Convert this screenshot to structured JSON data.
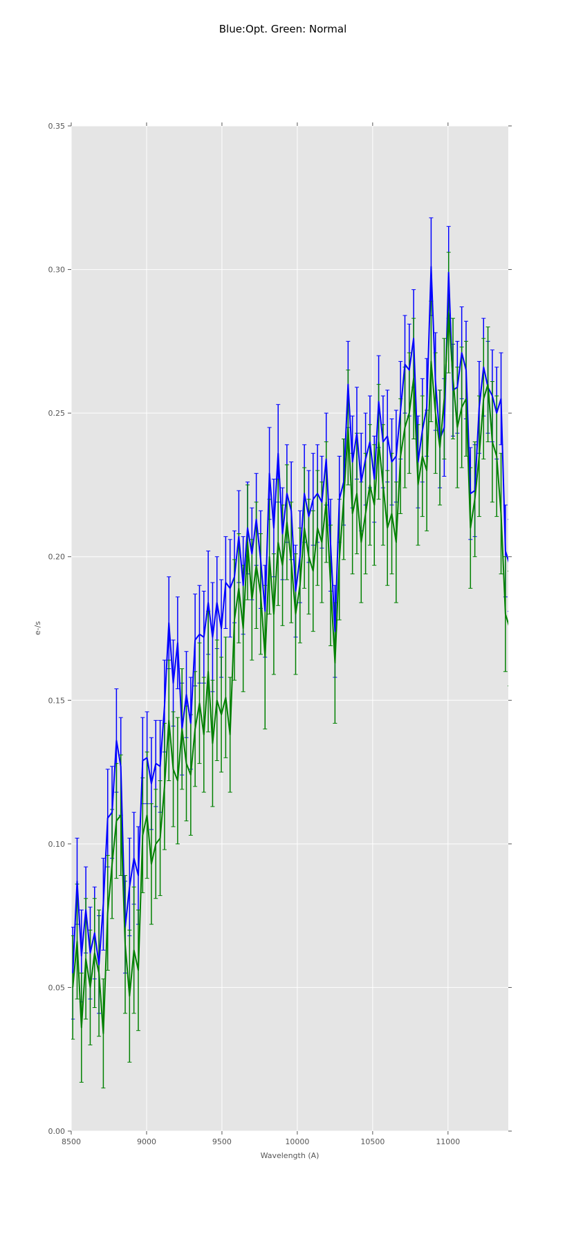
{
  "chart_data": {
    "type": "line",
    "title": "Blue:Opt. Green: Normal",
    "xlabel": "Wavelength (A)",
    "ylabel": "e-/s",
    "xlim": [
      8500,
      11400
    ],
    "ylim": [
      0,
      0.35
    ],
    "grid": true,
    "xticks": [
      8500,
      9000,
      9500,
      10000,
      10500,
      11000
    ],
    "xtick_labels": [
      "8500",
      "9000",
      "9500",
      "10000",
      "10500",
      "11000"
    ],
    "yticks": [
      0,
      0.05,
      0.1,
      0.15,
      0.2,
      0.25,
      0.3,
      0.35
    ],
    "ytick_labels": [
      "0.00",
      "0.05",
      "0.10",
      "0.15",
      "0.20",
      "0.25",
      "0.30",
      "0.35"
    ],
    "x_start": 8510,
    "x_step": 29,
    "series": [
      {
        "name": "Opt.",
        "color": "#0000ff",
        "values": [
          0.055,
          0.087,
          0.061,
          0.077,
          0.062,
          0.069,
          0.058,
          0.079,
          0.109,
          0.111,
          0.136,
          0.127,
          0.071,
          0.085,
          0.095,
          0.089,
          0.129,
          0.13,
          0.121,
          0.128,
          0.127,
          0.148,
          0.177,
          0.156,
          0.17,
          0.14,
          0.152,
          0.142,
          0.171,
          0.173,
          0.172,
          0.184,
          0.172,
          0.184,
          0.175,
          0.191,
          0.189,
          0.193,
          0.207,
          0.19,
          0.21,
          0.201,
          0.213,
          0.199,
          0.181,
          0.229,
          0.21,
          0.236,
          0.208,
          0.222,
          0.216,
          0.188,
          0.2,
          0.222,
          0.214,
          0.22,
          0.222,
          0.219,
          0.234,
          0.204,
          0.174,
          0.22,
          0.226,
          0.26,
          0.233,
          0.243,
          0.226,
          0.234,
          0.24,
          0.227,
          0.254,
          0.24,
          0.242,
          0.233,
          0.235,
          0.251,
          0.267,
          0.265,
          0.276,
          0.233,
          0.244,
          0.252,
          0.301,
          0.261,
          0.241,
          0.245,
          0.299,
          0.258,
          0.259,
          0.271,
          0.265,
          0.222,
          0.223,
          0.252,
          0.266,
          0.259,
          0.256,
          0.25,
          0.255,
          0.202,
          0.197
        ],
        "yerr": [
          0.016,
          0.015,
          0.016,
          0.015,
          0.016,
          0.016,
          0.017,
          0.016,
          0.017,
          0.016,
          0.018,
          0.017,
          0.016,
          0.017,
          0.016,
          0.017,
          0.015,
          0.016,
          0.016,
          0.015,
          0.016,
          0.016,
          0.016,
          0.015,
          0.016,
          0.016,
          0.015,
          0.016,
          0.016,
          0.017,
          0.016,
          0.018,
          0.019,
          0.016,
          0.017,
          0.016,
          0.017,
          0.016,
          0.016,
          0.017,
          0.016,
          0.016,
          0.016,
          0.017,
          0.016,
          0.016,
          0.017,
          0.017,
          0.016,
          0.017,
          0.017,
          0.016,
          0.016,
          0.017,
          0.016,
          0.016,
          0.017,
          0.016,
          0.016,
          0.016,
          0.016,
          0.015,
          0.015,
          0.015,
          0.016,
          0.016,
          0.017,
          0.016,
          0.016,
          0.015,
          0.016,
          0.016,
          0.016,
          0.015,
          0.016,
          0.017,
          0.017,
          0.016,
          0.017,
          0.016,
          0.018,
          0.017,
          0.017,
          0.017,
          0.017,
          0.017,
          0.016,
          0.016,
          0.016,
          0.016,
          0.017,
          0.016,
          0.016,
          0.016,
          0.017,
          0.016,
          0.016,
          0.016,
          0.016,
          0.016,
          0.016
        ]
      },
      {
        "name": "Normal",
        "color": "#008000",
        "values": [
          0.05,
          0.066,
          0.036,
          0.06,
          0.05,
          0.062,
          0.055,
          0.034,
          0.076,
          0.093,
          0.108,
          0.11,
          0.065,
          0.047,
          0.063,
          0.056,
          0.103,
          0.11,
          0.093,
          0.1,
          0.102,
          0.12,
          0.143,
          0.126,
          0.122,
          0.14,
          0.128,
          0.124,
          0.14,
          0.149,
          0.138,
          0.16,
          0.135,
          0.15,
          0.145,
          0.151,
          0.138,
          0.178,
          0.189,
          0.175,
          0.205,
          0.185,
          0.197,
          0.187,
          0.165,
          0.2,
          0.18,
          0.205,
          0.197,
          0.212,
          0.198,
          0.18,
          0.19,
          0.21,
          0.2,
          0.195,
          0.21,
          0.205,
          0.219,
          0.19,
          0.163,
          0.199,
          0.22,
          0.245,
          0.215,
          0.222,
          0.205,
          0.215,
          0.225,
          0.218,
          0.24,
          0.225,
          0.21,
          0.215,
          0.205,
          0.235,
          0.245,
          0.25,
          0.262,
          0.225,
          0.235,
          0.23,
          0.268,
          0.25,
          0.238,
          0.255,
          0.285,
          0.262,
          0.245,
          0.252,
          0.255,
          0.21,
          0.22,
          0.235,
          0.255,
          0.26,
          0.24,
          0.235,
          0.215,
          0.18,
          0.175
        ],
        "yerr": [
          0.018,
          0.02,
          0.019,
          0.021,
          0.02,
          0.019,
          0.022,
          0.019,
          0.02,
          0.019,
          0.02,
          0.021,
          0.024,
          0.023,
          0.022,
          0.021,
          0.02,
          0.022,
          0.021,
          0.019,
          0.02,
          0.022,
          0.021,
          0.02,
          0.022,
          0.021,
          0.02,
          0.021,
          0.02,
          0.021,
          0.02,
          0.021,
          0.022,
          0.021,
          0.02,
          0.021,
          0.02,
          0.021,
          0.019,
          0.022,
          0.02,
          0.021,
          0.022,
          0.021,
          0.025,
          0.02,
          0.021,
          0.022,
          0.021,
          0.02,
          0.021,
          0.021,
          0.02,
          0.021,
          0.02,
          0.021,
          0.02,
          0.021,
          0.021,
          0.021,
          0.021,
          0.021,
          0.021,
          0.02,
          0.021,
          0.021,
          0.021,
          0.021,
          0.021,
          0.021,
          0.02,
          0.021,
          0.02,
          0.021,
          0.021,
          0.02,
          0.021,
          0.021,
          0.021,
          0.021,
          0.021,
          0.021,
          0.021,
          0.021,
          0.02,
          0.021,
          0.021,
          0.021,
          0.021,
          0.021,
          0.02,
          0.021,
          0.02,
          0.021,
          0.021,
          0.02,
          0.021,
          0.021,
          0.021,
          0.02,
          0.02
        ]
      }
    ]
  }
}
